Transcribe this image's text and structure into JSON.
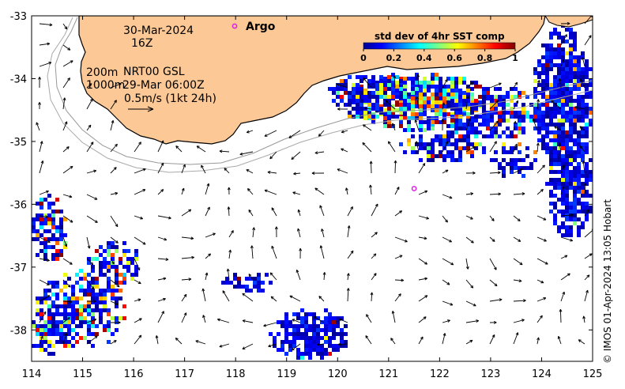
{
  "map": {
    "lon_range": [
      114,
      125
    ],
    "lat_range": [
      -38.5,
      -33
    ],
    "lon_ticks": [
      "114",
      "115",
      "116",
      "117",
      "118",
      "119",
      "120",
      "121",
      "122",
      "123",
      "124",
      "125"
    ],
    "lat_ticks": [
      "-33",
      "-34",
      "-35",
      "-36",
      "-37",
      "-38"
    ],
    "land_color": "#fbc896",
    "ocean_color": "#ffffff"
  },
  "annotations": {
    "date": "30-Mar-2024",
    "hour": "16Z",
    "iso_200": "200m",
    "iso_1000": "1000m",
    "product": "NRT00 GSL",
    "product_time": "29-Mar 06:00Z",
    "scale": "0.5m/s (1kt 24h)",
    "argo_label": "Argo"
  },
  "colorbar": {
    "title": "std dev of 4hr SST comp",
    "tick_labels": [
      "0",
      "0.2",
      "0.4",
      "0.6",
      "0.8",
      "1"
    ],
    "range": [
      0,
      1
    ],
    "colormap": "jet"
  },
  "argo_floats": [
    {
      "lon": 121.5,
      "lat": -35.75
    }
  ],
  "credit": "© IMOS 01-Apr-2024 13:05 Hobart"
}
